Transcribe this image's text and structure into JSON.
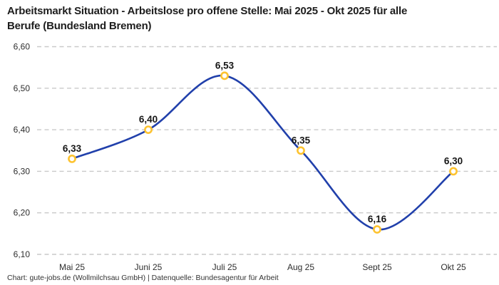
{
  "header": {
    "title_lines": [
      "Arbeitsmarkt Situation - Arbeitslose pro offene Stelle: Mai 2025 - Okt 2025 für alle",
      "Berufe (Bundesland Bremen)"
    ]
  },
  "footer": {
    "credit": "Chart: gute-jobs.de (Wollmilchsau GmbH) | Datenquelle: Bundesagentur für Arbeit"
  },
  "chart_data": {
    "type": "line",
    "title": "Arbeitsmarkt Situation - Arbeitslose pro offene Stelle: Mai 2025 - Okt 2025 für alle Berufe (Bundesland Bremen)",
    "categories": [
      "Mai 25",
      "Juni 25",
      "Juli 25",
      "Aug 25",
      "Sept 25",
      "Okt 25"
    ],
    "values": [
      6.33,
      6.4,
      6.53,
      6.35,
      6.16,
      6.3
    ],
    "point_labels": [
      "6,33",
      "6,40",
      "6,53",
      "6,35",
      "6,16",
      "6,30"
    ],
    "y_ticks": [
      {
        "label": "6,60",
        "value": 6.6
      },
      {
        "label": "6,50",
        "value": 6.5
      },
      {
        "label": "6,40",
        "value": 6.4
      },
      {
        "label": "6,30",
        "value": 6.3
      },
      {
        "label": "6,20",
        "value": 6.2
      },
      {
        "label": "6,10",
        "value": 6.1
      }
    ],
    "ylim": [
      6.1,
      6.6
    ],
    "xlabel": "",
    "ylabel": "",
    "grid": "horizontal-dashed",
    "legend": "none",
    "curve": "smooth",
    "colors": {
      "line": "#2140ab",
      "marker_stroke": "#fdc330",
      "marker_fill": "#ffffff",
      "grid": "#c9c9c9",
      "title_text": "#1d1d1d",
      "tick_text": "#2e2e2e",
      "label_text": "#161616",
      "background": "#ffffff"
    }
  }
}
